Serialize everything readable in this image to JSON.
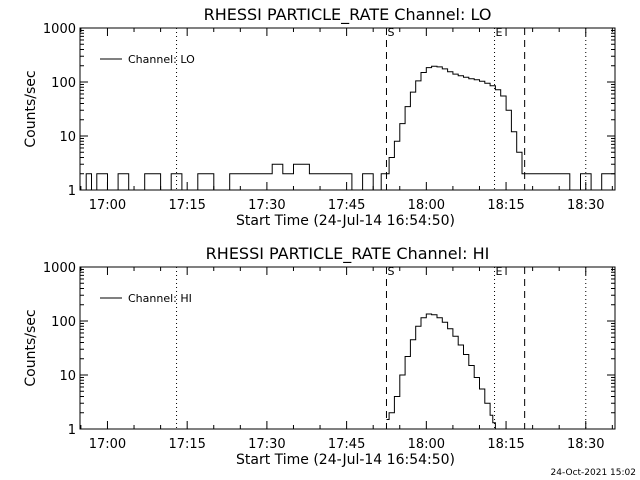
{
  "colors": {
    "background": "#ffffff",
    "foreground": "#000000"
  },
  "timestamp": "24-Oct-2021 15:02",
  "chart_data": [
    {
      "type": "line",
      "title": "RHESSI PARTICLE_RATE Channel: LO",
      "xlabel": "Start Time (24-Jul-14 16:54:50)",
      "ylabel": "Counts/sec",
      "y_scale": "log",
      "ylim": [
        1,
        1000
      ],
      "xlim": [
        "16:54:50",
        "18:35:30"
      ],
      "x_ticks": [
        "17:00",
        "17:15",
        "17:30",
        "17:45",
        "18:00",
        "18:15",
        "18:30"
      ],
      "y_ticks": [
        "1",
        "10",
        "100",
        "1000"
      ],
      "legend": {
        "entries": [
          "Channel: LO"
        ],
        "position": "top-left"
      },
      "markers": [
        {
          "label": "S",
          "time": "17:52:30",
          "style": "dashed"
        },
        {
          "label": "E",
          "time": "18:12:50",
          "style": "dotted"
        },
        {
          "time": "18:18:30",
          "style": "dashed"
        },
        {
          "time": "17:13:00",
          "style": "dotted"
        },
        {
          "time": "18:30:00",
          "style": "dotted"
        }
      ],
      "series": [
        {
          "name": "Channel: LO",
          "x": [
            "16:54:50",
            "16:56:00",
            "16:57:00",
            "16:58:00",
            "17:00:00",
            "17:02:00",
            "17:04:00",
            "17:07:00",
            "17:10:00",
            "17:12:00",
            "17:14:00",
            "17:17:00",
            "17:20:00",
            "17:23:00",
            "17:26:00",
            "17:29:00",
            "17:31:00",
            "17:33:00",
            "17:35:00",
            "17:38:00",
            "17:41:00",
            "17:44:00",
            "17:46:00",
            "17:48:00",
            "17:50:00",
            "17:51:30",
            "17:52:30",
            "17:53:00",
            "17:54:00",
            "17:55:00",
            "17:56:00",
            "17:57:00",
            "17:58:00",
            "17:59:00",
            "18:00:00",
            "18:01:00",
            "18:02:00",
            "18:03:00",
            "18:04:00",
            "18:05:00",
            "18:06:00",
            "18:07:00",
            "18:08:00",
            "18:09:00",
            "18:10:00",
            "18:11:00",
            "18:12:00",
            "18:13:00",
            "18:14:00",
            "18:15:00",
            "18:16:00",
            "18:17:00",
            "18:18:00",
            "18:19:00",
            "18:21:00",
            "18:23:00",
            "18:25:00",
            "18:27:00",
            "18:29:00",
            "18:31:00",
            "18:33:00",
            "18:35:30"
          ],
          "values": [
            1,
            2,
            1,
            2,
            1,
            2,
            1,
            2,
            1,
            2,
            1,
            2,
            1,
            2,
            2,
            2,
            3,
            2,
            3,
            2,
            2,
            2,
            1,
            2,
            1,
            2,
            2,
            4,
            8,
            17,
            35,
            65,
            105,
            150,
            185,
            195,
            190,
            175,
            155,
            140,
            130,
            122,
            115,
            110,
            103,
            95,
            85,
            72,
            55,
            30,
            12,
            5,
            2,
            2,
            2,
            2,
            2,
            1,
            2,
            1,
            2,
            2
          ]
        }
      ]
    },
    {
      "type": "line",
      "title": "RHESSI PARTICLE_RATE Channel: HI",
      "xlabel": "Start Time (24-Jul-14 16:54:50)",
      "ylabel": "Counts/sec",
      "y_scale": "log",
      "ylim": [
        1,
        1000
      ],
      "xlim": [
        "16:54:50",
        "18:35:30"
      ],
      "x_ticks": [
        "17:00",
        "17:15",
        "17:30",
        "17:45",
        "18:00",
        "18:15",
        "18:30"
      ],
      "y_ticks": [
        "1",
        "10",
        "100",
        "1000"
      ],
      "legend": {
        "entries": [
          "Channel: HI"
        ],
        "position": "top-left"
      },
      "markers": [
        {
          "label": "S",
          "time": "17:52:30",
          "style": "dashed"
        },
        {
          "label": "E",
          "time": "18:12:50",
          "style": "dotted"
        },
        {
          "time": "18:18:30",
          "style": "dashed"
        },
        {
          "time": "17:13:00",
          "style": "dotted"
        },
        {
          "time": "18:30:00",
          "style": "dotted"
        }
      ],
      "series": [
        {
          "name": "Channel: HI",
          "x": [
            "17:52:30",
            "17:53:00",
            "17:54:00",
            "17:55:00",
            "17:56:00",
            "17:57:00",
            "17:58:00",
            "17:59:00",
            "18:00:00",
            "18:01:00",
            "18:02:00",
            "18:03:00",
            "18:04:00",
            "18:05:00",
            "18:06:00",
            "18:07:00",
            "18:08:00",
            "18:09:00",
            "18:10:00",
            "18:11:00",
            "18:12:00",
            "18:12:30",
            "18:13:00"
          ],
          "values": [
            1.5,
            2,
            4,
            10,
            22,
            45,
            80,
            115,
            135,
            130,
            115,
            95,
            72,
            52,
            36,
            24,
            15,
            9,
            5.5,
            3,
            1.8,
            1.3,
            1
          ]
        }
      ]
    }
  ]
}
